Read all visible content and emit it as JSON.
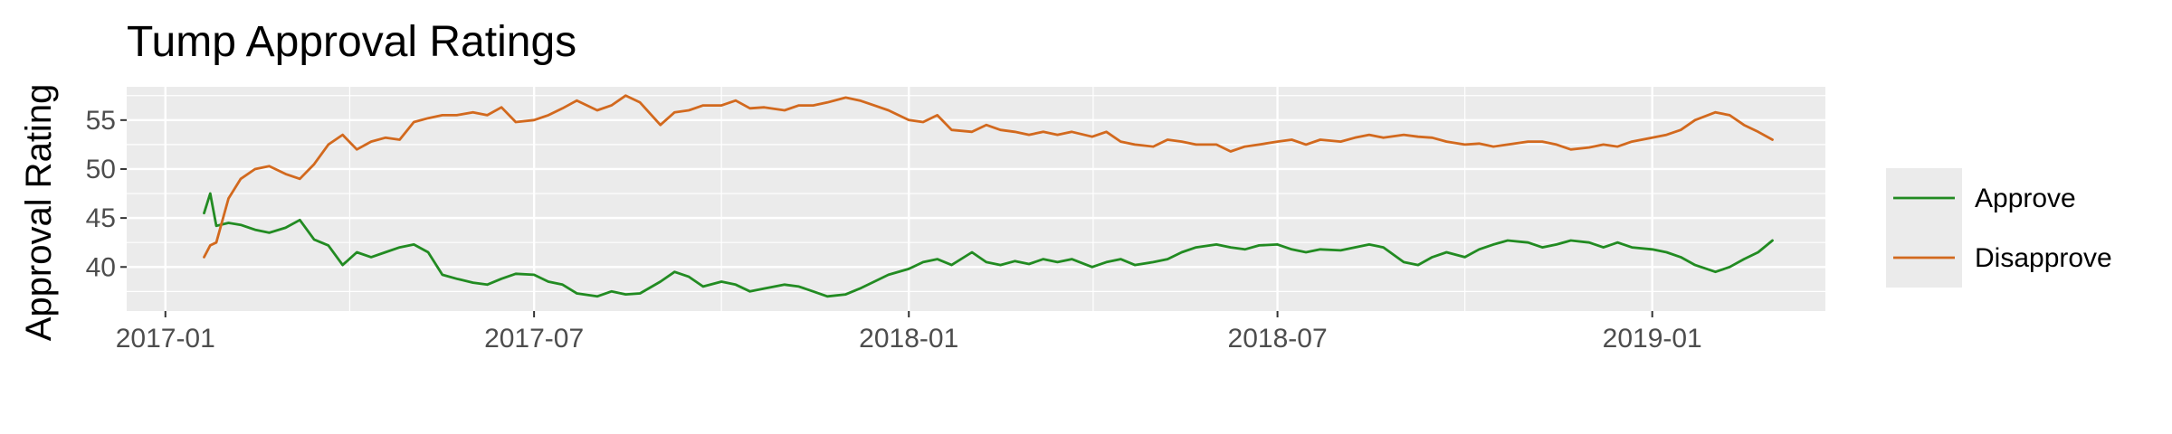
{
  "chart_data": {
    "type": "line",
    "title": "Tump Approval Ratings",
    "xlabel": "",
    "ylabel": "Approval Rating",
    "x_type": "date",
    "x_ticks": [
      "2017-01",
      "2017-07",
      "2018-01",
      "2018-07",
      "2019-01"
    ],
    "y_ticks": [
      40,
      45,
      50,
      55
    ],
    "xlim": [
      "2016-12-13",
      "2019-03-27"
    ],
    "ylim": [
      35.5,
      58.4
    ],
    "grid": true,
    "legend_position": "right",
    "x": [
      "2017-01-20",
      "2017-01-23",
      "2017-01-26",
      "2017-02-01",
      "2017-02-07",
      "2017-02-14",
      "2017-02-21",
      "2017-03-01",
      "2017-03-08",
      "2017-03-15",
      "2017-03-22",
      "2017-03-29",
      "2017-04-05",
      "2017-04-12",
      "2017-04-19",
      "2017-04-26",
      "2017-05-03",
      "2017-05-10",
      "2017-05-17",
      "2017-05-24",
      "2017-06-01",
      "2017-06-08",
      "2017-06-15",
      "2017-06-22",
      "2017-07-01",
      "2017-07-08",
      "2017-07-15",
      "2017-07-22",
      "2017-08-01",
      "2017-08-08",
      "2017-08-15",
      "2017-08-22",
      "2017-09-01",
      "2017-09-08",
      "2017-09-15",
      "2017-09-22",
      "2017-10-01",
      "2017-10-08",
      "2017-10-15",
      "2017-10-22",
      "2017-11-01",
      "2017-11-08",
      "2017-11-15",
      "2017-11-22",
      "2017-12-01",
      "2017-12-08",
      "2017-12-15",
      "2017-12-22",
      "2018-01-01",
      "2018-01-08",
      "2018-01-15",
      "2018-01-22",
      "2018-02-01",
      "2018-02-08",
      "2018-02-15",
      "2018-02-22",
      "2018-03-01",
      "2018-03-08",
      "2018-03-15",
      "2018-03-22",
      "2018-04-01",
      "2018-04-08",
      "2018-04-15",
      "2018-04-22",
      "2018-05-01",
      "2018-05-08",
      "2018-05-15",
      "2018-05-22",
      "2018-06-01",
      "2018-06-08",
      "2018-06-15",
      "2018-06-22",
      "2018-07-01",
      "2018-07-08",
      "2018-07-15",
      "2018-07-22",
      "2018-08-01",
      "2018-08-08",
      "2018-08-15",
      "2018-08-22",
      "2018-09-01",
      "2018-09-08",
      "2018-09-15",
      "2018-09-22",
      "2018-10-01",
      "2018-10-08",
      "2018-10-15",
      "2018-10-22",
      "2018-11-01",
      "2018-11-08",
      "2018-11-15",
      "2018-11-22",
      "2018-12-01",
      "2018-12-08",
      "2018-12-15",
      "2018-12-22",
      "2019-01-01",
      "2019-01-08",
      "2019-01-15",
      "2019-01-22",
      "2019-02-01",
      "2019-02-08",
      "2019-02-15",
      "2019-02-22",
      "2019-03-01"
    ],
    "series": [
      {
        "name": "Approve",
        "color": "#228b22",
        "values": [
          45.5,
          47.5,
          44.2,
          44.5,
          44.3,
          43.8,
          43.5,
          44.0,
          44.8,
          42.8,
          42.2,
          40.2,
          41.5,
          41.0,
          41.5,
          42.0,
          42.3,
          41.5,
          39.2,
          38.8,
          38.4,
          38.2,
          38.8,
          39.3,
          39.2,
          38.5,
          38.2,
          37.3,
          37.0,
          37.5,
          37.2,
          37.3,
          38.5,
          39.5,
          39.0,
          38.0,
          38.5,
          38.2,
          37.5,
          37.8,
          38.2,
          38.0,
          37.5,
          37.0,
          37.2,
          37.8,
          38.5,
          39.2,
          39.8,
          40.5,
          40.8,
          40.2,
          41.5,
          40.5,
          40.2,
          40.6,
          40.3,
          40.8,
          40.5,
          40.8,
          40.0,
          40.5,
          40.8,
          40.2,
          40.5,
          40.8,
          41.5,
          42.0,
          42.3,
          42.0,
          41.8,
          42.2,
          42.3,
          41.8,
          41.5,
          41.8,
          41.7,
          42.0,
          42.3,
          42.0,
          40.5,
          40.2,
          41.0,
          41.5,
          41.0,
          41.8,
          42.3,
          42.7,
          42.5,
          42.0,
          42.3,
          42.7,
          42.5,
          42.0,
          42.5,
          42.0,
          41.8,
          41.5,
          41.0,
          40.2,
          39.5,
          40.0,
          40.8,
          41.5,
          42.7
        ]
      },
      {
        "name": "Disapprove",
        "color": "#d2691e",
        "values": [
          41.0,
          42.2,
          42.5,
          47.0,
          49.0,
          50.0,
          50.3,
          49.5,
          49.0,
          50.5,
          52.5,
          53.5,
          52.0,
          52.8,
          53.2,
          53.0,
          54.8,
          55.2,
          55.5,
          55.5,
          55.8,
          55.5,
          56.3,
          54.8,
          55.0,
          55.5,
          56.2,
          57.0,
          56.0,
          56.5,
          57.5,
          56.8,
          54.5,
          55.8,
          56.0,
          56.5,
          56.5,
          57.0,
          56.2,
          56.3,
          56.0,
          56.5,
          56.5,
          56.8,
          57.3,
          57.0,
          56.5,
          56.0,
          55.0,
          54.8,
          55.5,
          54.0,
          53.8,
          54.5,
          54.0,
          53.8,
          53.5,
          53.8,
          53.5,
          53.8,
          53.3,
          53.8,
          52.8,
          52.5,
          52.3,
          53.0,
          52.8,
          52.5,
          52.5,
          51.8,
          52.3,
          52.5,
          52.8,
          53.0,
          52.5,
          53.0,
          52.8,
          53.2,
          53.5,
          53.2,
          53.5,
          53.3,
          53.2,
          52.8,
          52.5,
          52.6,
          52.3,
          52.5,
          52.8,
          52.8,
          52.5,
          52.0,
          52.2,
          52.5,
          52.3,
          52.8,
          53.2,
          53.5,
          54.0,
          55.0,
          55.8,
          55.5,
          54.5,
          53.8,
          53.0
        ]
      }
    ]
  },
  "colors": {
    "panel_bg": "#ebebeb",
    "grid_major": "#ffffff",
    "tick_text": "#4d4d4d",
    "tick_mark": "#333333"
  }
}
